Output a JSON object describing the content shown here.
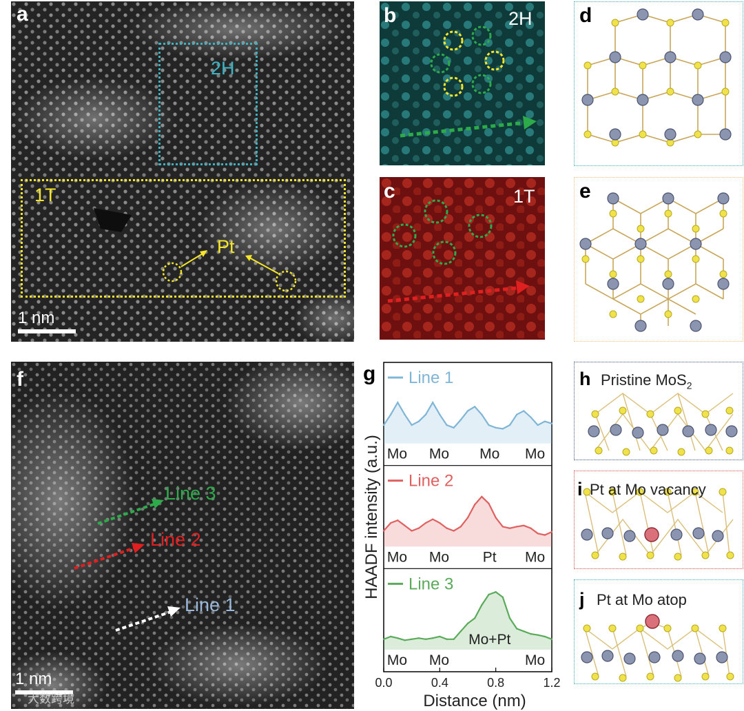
{
  "panels": {
    "a": {
      "label": "a",
      "region_2h": "2H",
      "region_1t": "1T",
      "pt_label": "Pt",
      "scale": "1 nm"
    },
    "b": {
      "label": "b",
      "tag": "2H"
    },
    "c": {
      "label": "c",
      "tag": "1T"
    },
    "d": {
      "label": "d"
    },
    "e": {
      "label": "e"
    },
    "f": {
      "label": "f",
      "line3": "Line 3",
      "line2": "Line 2",
      "line1": "Line 1",
      "scale": "1 nm"
    },
    "g": {
      "label": "g"
    },
    "h": {
      "label": "h",
      "title": "Pristine MoS",
      "title_sub": "2"
    },
    "i": {
      "label": "i",
      "title": "Pt at Mo vacancy"
    },
    "j": {
      "label": "j",
      "title": "Pt at Mo atop"
    }
  },
  "chart_data": {
    "type": "line",
    "xlabel": "Distance (nm)",
    "ylabel": "HAADF intensity (a.u.)",
    "xlim": [
      0.0,
      1.2
    ],
    "xticks": [
      "0.0",
      "0.4",
      "0.8",
      "1.2"
    ],
    "series": [
      {
        "name": "Line 1",
        "color": "#7fb5d6",
        "x": [
          0.0,
          0.05,
          0.1,
          0.15,
          0.2,
          0.25,
          0.3,
          0.35,
          0.4,
          0.45,
          0.5,
          0.55,
          0.6,
          0.65,
          0.7,
          0.75,
          0.8,
          0.85,
          0.9,
          0.95,
          1.0,
          1.05,
          1.1,
          1.15,
          1.2
        ],
        "y": [
          0.35,
          0.55,
          0.78,
          0.55,
          0.35,
          0.42,
          0.55,
          0.78,
          0.55,
          0.35,
          0.3,
          0.45,
          0.62,
          0.7,
          0.55,
          0.35,
          0.3,
          0.28,
          0.35,
          0.55,
          0.62,
          0.5,
          0.35,
          0.42,
          0.38
        ],
        "labels": [
          "Mo",
          "Mo",
          "Mo",
          "Mo"
        ]
      },
      {
        "name": "Line 2",
        "color": "#e06060",
        "x": [
          0.0,
          0.05,
          0.1,
          0.15,
          0.2,
          0.25,
          0.3,
          0.35,
          0.4,
          0.45,
          0.5,
          0.55,
          0.6,
          0.65,
          0.7,
          0.75,
          0.8,
          0.85,
          0.9,
          0.95,
          1.0,
          1.05,
          1.1,
          1.15,
          1.2
        ],
        "y": [
          0.3,
          0.45,
          0.5,
          0.4,
          0.3,
          0.35,
          0.45,
          0.52,
          0.45,
          0.35,
          0.3,
          0.38,
          0.55,
          0.8,
          0.95,
          0.82,
          0.55,
          0.38,
          0.35,
          0.38,
          0.4,
          0.35,
          0.25,
          0.22,
          0.28
        ],
        "labels": [
          "Mo",
          "Mo",
          "Pt",
          "Mo"
        ]
      },
      {
        "name": "Line 3",
        "color": "#5aaa5a",
        "x": [
          0.0,
          0.05,
          0.1,
          0.15,
          0.2,
          0.25,
          0.3,
          0.35,
          0.4,
          0.45,
          0.5,
          0.55,
          0.6,
          0.65,
          0.7,
          0.75,
          0.8,
          0.85,
          0.9,
          0.95,
          1.0,
          1.05,
          1.1,
          1.15,
          1.2
        ],
        "y": [
          0.2,
          0.25,
          0.22,
          0.18,
          0.2,
          0.22,
          0.2,
          0.22,
          0.25,
          0.2,
          0.2,
          0.35,
          0.5,
          0.6,
          0.85,
          1.05,
          1.1,
          1.0,
          0.6,
          0.4,
          0.35,
          0.3,
          0.28,
          0.25,
          0.2
        ],
        "labels": [
          "Mo",
          "Mo",
          "Mo+Pt",
          "Mo"
        ]
      }
    ]
  },
  "watermark": "大数跨境",
  "colors": {
    "yellow": "#f5e62a",
    "teal": "#3bb3c3",
    "green": "#2daa4a",
    "red": "#e02020",
    "orange": "#f2c27a",
    "blue_box": "#3a5a8a",
    "red_box": "#e05050"
  }
}
